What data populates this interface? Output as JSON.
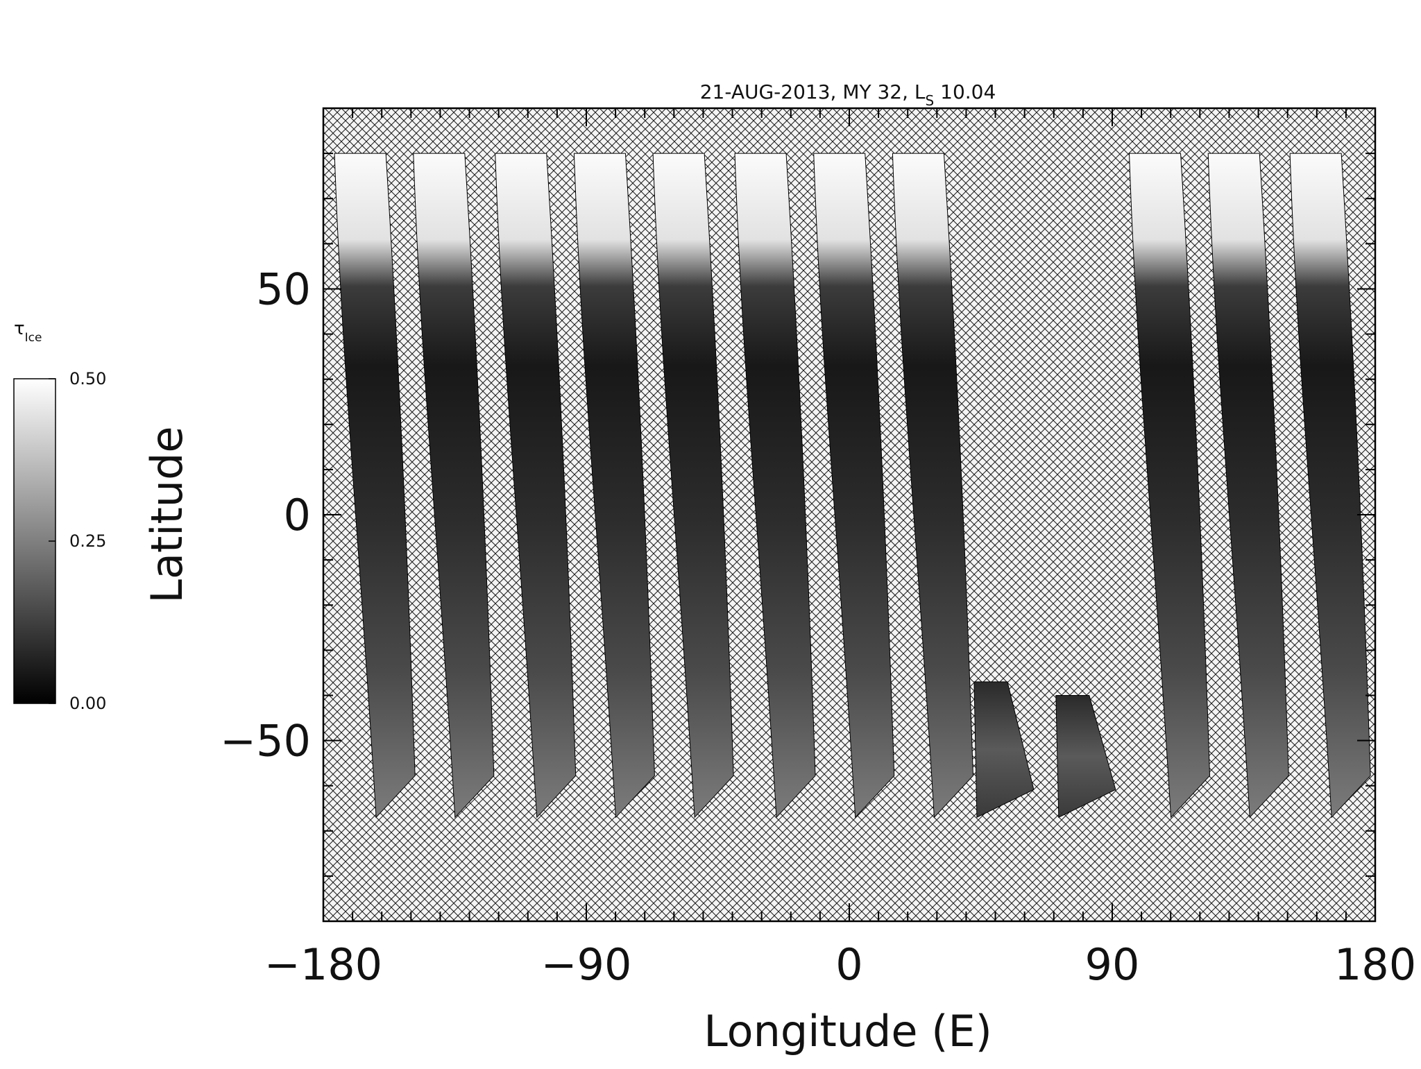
{
  "chart_data": {
    "type": "heatmap",
    "title_main": "21-AUG-2013, MY 32,  L",
    "title_sub": "S",
    "title_value": " 10.04",
    "xlabel": "Longitude (E)",
    "ylabel": "Latitude",
    "xlim": [
      -180,
      180
    ],
    "ylim": [
      -90,
      90
    ],
    "x_ticks": [
      -180,
      -90,
      0,
      90,
      180
    ],
    "x_tick_labels": [
      "−180",
      "−90",
      "0",
      "90",
      "180"
    ],
    "y_ticks": [
      -50,
      0,
      50
    ],
    "y_tick_labels": [
      "−50",
      "0",
      "50"
    ],
    "colorbar": {
      "label_main": "τ",
      "label_sub": "Ice",
      "ticks": [
        0.0,
        0.25,
        0.5
      ],
      "tick_labels": [
        "0.00",
        "0.25",
        "0.50"
      ],
      "range": [
        0.0,
        0.5
      ]
    },
    "no_data_pattern": "crosshatch",
    "grid": false,
    "swaths": [
      {
        "lon_center": -170,
        "lat_min": -67,
        "lat_max": 80
      },
      {
        "lon_center": -143,
        "lat_min": -67,
        "lat_max": 80
      },
      {
        "lon_center": -115,
        "lat_min": -67,
        "lat_max": 80
      },
      {
        "lon_center": -88,
        "lat_min": -67,
        "lat_max": 80
      },
      {
        "lon_center": -61,
        "lat_min": -67,
        "lat_max": 80
      },
      {
        "lon_center": -33,
        "lat_min": -67,
        "lat_max": 80
      },
      {
        "lon_center": -6,
        "lat_min": -67,
        "lat_max": 80
      },
      {
        "lon_center": 21,
        "lat_min": -67,
        "lat_max": 80
      },
      {
        "lon_center": 47,
        "lat_min": -67,
        "lat_max": -37
      },
      {
        "lon_center": 75,
        "lat_min": -67,
        "lat_max": -40
      },
      {
        "lon_center": 102,
        "lat_min": -67,
        "lat_max": 80
      },
      {
        "lon_center": 129,
        "lat_min": -67,
        "lat_max": 80
      },
      {
        "lon_center": 157,
        "lat_min": -67,
        "lat_max": 80
      }
    ]
  }
}
